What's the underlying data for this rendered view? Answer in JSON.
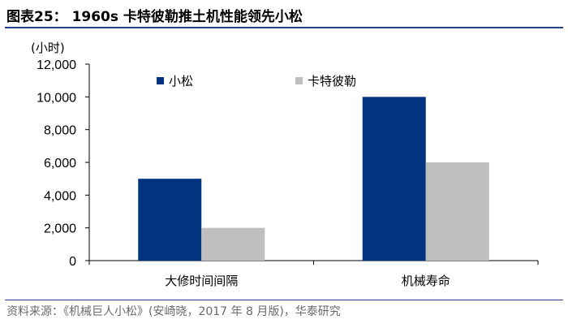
{
  "header": {
    "title": "图表25：  1960s 卡特彼勒推土机性能领先小松"
  },
  "footer": {
    "source": "资料来源：《机械巨人小松》(安崎晓，2017 年 8 月版)，华泰研究"
  },
  "chart_data": {
    "type": "bar",
    "unit_label": "(小时)",
    "categories": [
      "大修时间间隔",
      "机械寿命"
    ],
    "series": [
      {
        "name": "小松",
        "color": "#003380",
        "values": [
          5000,
          10000
        ]
      },
      {
        "name": "卡特彼勒",
        "color": "#bfbfbf",
        "values": [
          2000,
          6000
        ]
      }
    ],
    "ylim": [
      0,
      12000
    ],
    "yticks": [
      0,
      2000,
      4000,
      6000,
      8000,
      10000,
      12000
    ],
    "ytick_labels": [
      "0",
      "2,000",
      "4,000",
      "6,000",
      "8,000",
      "10,000",
      "12,000"
    ],
    "legend_position": "top",
    "grid": false
  }
}
